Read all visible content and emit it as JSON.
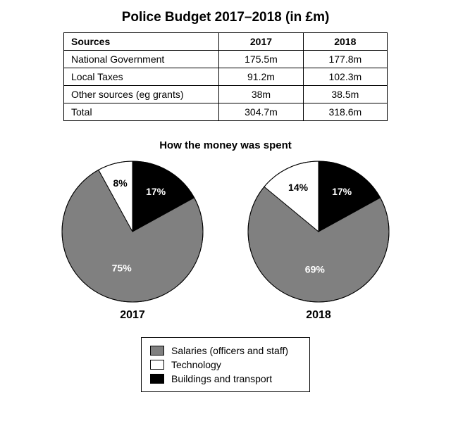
{
  "title": "Police Budget 2017–2018 (in £m)",
  "title_fontsize": 19,
  "table": {
    "columns": [
      "Sources",
      "2017",
      "2018"
    ],
    "col_widths_pct": [
      48,
      26,
      26
    ],
    "rows": [
      [
        "National Government",
        "175.5m",
        "177.8m"
      ],
      [
        "Local Taxes",
        "91.2m",
        "102.3m"
      ],
      [
        "Other sources (eg grants)",
        "38m",
        "38.5m"
      ],
      [
        "Total",
        "304.7m",
        "318.6m"
      ]
    ],
    "border_color": "#000000",
    "background": "#ffffff"
  },
  "subtitle": "How the money was spent",
  "subtitle_fontsize": 15,
  "pies": {
    "radius": 100,
    "stroke": "#000000",
    "stroke_width": 1,
    "start_angle_deg": -90,
    "charts": [
      {
        "year": "2017",
        "slices": [
          {
            "label": "17%",
            "value": 17,
            "color": "#000000",
            "text_color": "white",
            "label_r": 0.65
          },
          {
            "label": "75%",
            "value": 75,
            "color": "#808080",
            "text_color": "white",
            "label_r": 0.55
          },
          {
            "label": "8%",
            "value": 8,
            "color": "#ffffff",
            "text_color": "black",
            "label_r": 0.7
          }
        ]
      },
      {
        "year": "2018",
        "slices": [
          {
            "label": "17%",
            "value": 17,
            "color": "#000000",
            "text_color": "white",
            "label_r": 0.65
          },
          {
            "label": "69%",
            "value": 69,
            "color": "#808080",
            "text_color": "white",
            "label_r": 0.55
          },
          {
            "label": "14%",
            "value": 14,
            "color": "#ffffff",
            "text_color": "black",
            "label_r": 0.68
          }
        ]
      }
    ]
  },
  "legend": {
    "items": [
      {
        "label": "Salaries (officers and staff)",
        "color": "#808080"
      },
      {
        "label": "Technology",
        "color": "#ffffff"
      },
      {
        "label": "Buildings and transport",
        "color": "#000000"
      }
    ]
  },
  "colors": {
    "background": "#ffffff",
    "text": "#000000"
  }
}
